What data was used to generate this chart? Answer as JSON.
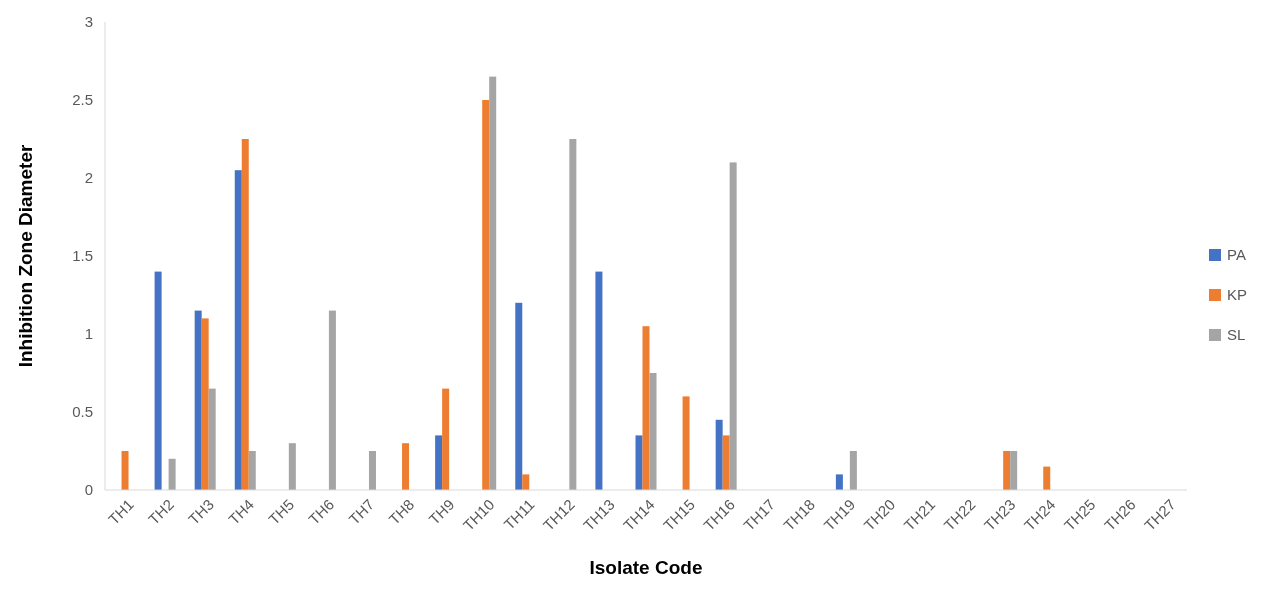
{
  "chart_data": {
    "type": "bar",
    "xlabel": "Isolate Code",
    "ylabel": "Inhibition Zone Diameter",
    "categories": [
      "TH1",
      "TH2",
      "TH3",
      "TH4",
      "TH5",
      "TH6",
      "TH7",
      "TH8",
      "TH9",
      "TH10",
      "TH11",
      "TH12",
      "TH13",
      "TH14",
      "TH15",
      "TH16",
      "TH17",
      "TH18",
      "TH19",
      "TH20",
      "TH21",
      "TH22",
      "TH23",
      "TH24",
      "TH25",
      "TH26",
      "TH27"
    ],
    "series": [
      {
        "name": "PA",
        "color": "#4472c4",
        "values": [
          0,
          1.4,
          1.15,
          2.05,
          0,
          0,
          0,
          0,
          0.35,
          0,
          1.2,
          0,
          1.4,
          0.35,
          0,
          0.45,
          0,
          0,
          0.1,
          0,
          0,
          0,
          0,
          0,
          0,
          0,
          0
        ]
      },
      {
        "name": "KP",
        "color": "#ed7d31",
        "values": [
          0.25,
          0,
          1.1,
          2.25,
          0,
          0,
          0,
          0.3,
          0.65,
          2.5,
          0.1,
          0,
          0,
          1.05,
          0.6,
          0.35,
          0,
          0,
          0,
          0,
          0,
          0,
          0.25,
          0.15,
          0,
          0,
          0
        ]
      },
      {
        "name": "SL",
        "color": "#a5a5a5",
        "values": [
          0,
          0.2,
          0.65,
          0.25,
          0.3,
          1.15,
          0.25,
          0,
          0,
          2.65,
          0,
          2.25,
          0,
          0.75,
          0,
          2.1,
          0,
          0,
          0.25,
          0,
          0,
          0,
          0.25,
          0,
          0,
          0,
          0
        ]
      }
    ],
    "ylim": [
      0,
      3
    ],
    "yticks": [
      0,
      0.5,
      1,
      1.5,
      2,
      2.5,
      3
    ],
    "legend": "right"
  }
}
